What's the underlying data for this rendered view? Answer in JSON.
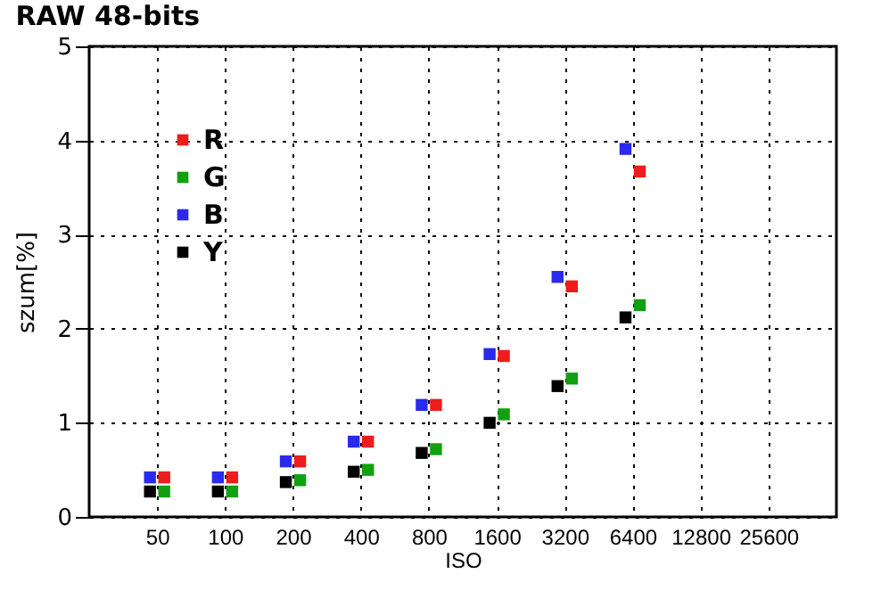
{
  "chart_data": {
    "type": "scatter",
    "title": "RAW 48-bits",
    "xlabel": "ISO",
    "ylabel": "szum[%]",
    "categories": [
      "50",
      "100",
      "200",
      "400",
      "800",
      "1600",
      "3200",
      "6400",
      "12800",
      "25600"
    ],
    "series": [
      {
        "name": "R",
        "color": "#ee1c1c",
        "values": [
          0.42,
          0.42,
          0.59,
          0.8,
          1.19,
          1.71,
          2.45,
          3.67,
          null,
          null
        ]
      },
      {
        "name": "G",
        "color": "#10a010",
        "values": [
          0.27,
          0.27,
          0.39,
          0.5,
          0.72,
          1.09,
          1.47,
          2.25,
          null,
          null
        ]
      },
      {
        "name": "B",
        "color": "#2a2aee",
        "values": [
          0.42,
          0.42,
          0.59,
          0.8,
          1.19,
          1.73,
          2.55,
          3.91,
          null,
          null
        ]
      },
      {
        "name": "Y",
        "color": "#000000",
        "values": [
          0.27,
          0.27,
          0.37,
          0.48,
          0.68,
          1.0,
          1.39,
          2.12,
          null,
          null
        ]
      }
    ],
    "ylim": [
      0,
      5
    ],
    "yticks": [
      0,
      1,
      2,
      3,
      4,
      5
    ],
    "grid": true,
    "legend": "top left",
    "marker": "square"
  }
}
